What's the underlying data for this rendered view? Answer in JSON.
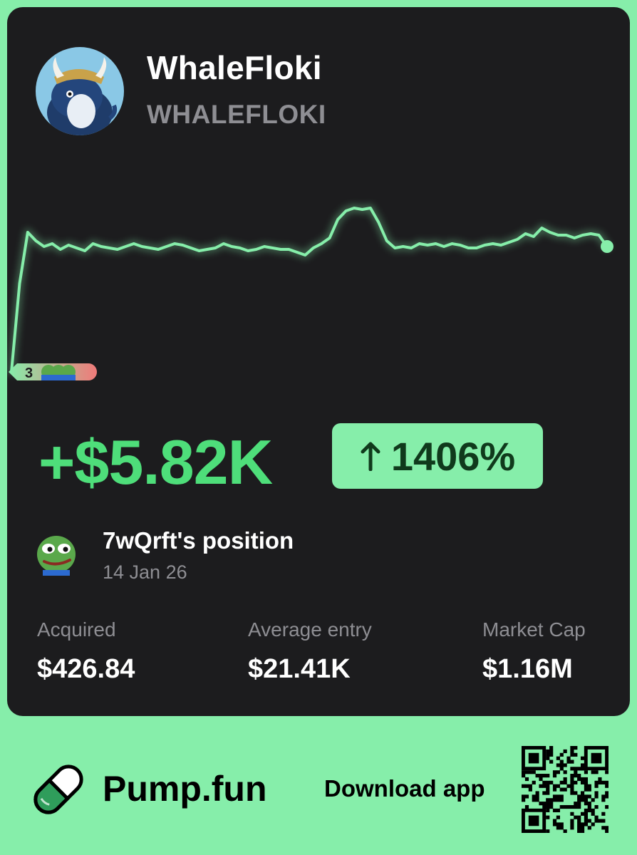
{
  "token": {
    "name": "WhaleFloki",
    "ticker": "WHALEFLOKI",
    "avatar_icon": "whale-viking-avatar"
  },
  "chart_data": {
    "type": "line",
    "series": [
      {
        "values": [
          0.0,
          0.62,
          0.98,
          0.92,
          0.88,
          0.9,
          0.86,
          0.89,
          0.87,
          0.85,
          0.9,
          0.88,
          0.87,
          0.86,
          0.88,
          0.9,
          0.88,
          0.87,
          0.86,
          0.88,
          0.9,
          0.89,
          0.87,
          0.85,
          0.86,
          0.87,
          0.9,
          0.88,
          0.87,
          0.85,
          0.86,
          0.88,
          0.87,
          0.86,
          0.86,
          0.84,
          0.82,
          0.87,
          0.9,
          0.94,
          1.07,
          1.13,
          1.15,
          1.14,
          1.15,
          1.05,
          0.92,
          0.87,
          0.88,
          0.87,
          0.9,
          0.89,
          0.9,
          0.88,
          0.9,
          0.89,
          0.87,
          0.87,
          0.89,
          0.9,
          0.89,
          0.91,
          0.93,
          0.97,
          0.95,
          1.01,
          0.98,
          0.96,
          0.96,
          0.94,
          0.96,
          0.97,
          0.96,
          0.88
        ]
      }
    ],
    "marker": {
      "count_label": "3",
      "color_start": "#86eeaa",
      "color_end": "#f07a7a"
    },
    "line_color": "#86eeaa"
  },
  "pnl": {
    "amount": "+$5.82K",
    "percent": "1406%",
    "direction_icon": "arrow-up-icon",
    "accent_color": "#4ede7a"
  },
  "position": {
    "title": "7wQrft's position",
    "date": "14 Jan 26",
    "avatar_icon": "pepe-avatar"
  },
  "stats": [
    {
      "label": "Acquired",
      "value": "$426.84"
    },
    {
      "label": "Average entry",
      "value": "$21.41K"
    },
    {
      "label": "Market Cap",
      "value": "$1.16M"
    }
  ],
  "footer": {
    "brand": "Pump.fun",
    "download": "Download app",
    "logo_icon": "pill-icon",
    "qr_icon": "qr-code"
  },
  "colors": {
    "background": "#86eeaa",
    "card": "#1c1c1e",
    "muted": "#8e8e93"
  }
}
